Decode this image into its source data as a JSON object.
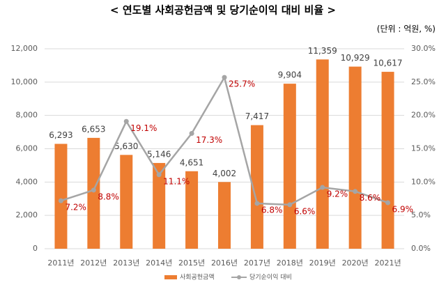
{
  "chart_data": {
    "type": "combo",
    "title": "< 연도별 사회공헌금액 및 당기순이익 대비 비율 >",
    "subtitle": "(단위 : 억원, %)",
    "categories": [
      "2011년",
      "2012년",
      "2013년",
      "2014년",
      "2015년",
      "2016년",
      "2017년",
      "2018년",
      "2019년",
      "2020년",
      "2021년"
    ],
    "series": [
      {
        "name": "사회공헌금액",
        "type": "bar",
        "color": "#ed7d31",
        "values": [
          6293,
          6653,
          5630,
          5146,
          4651,
          4002,
          7417,
          9904,
          11359,
          10929,
          10617
        ],
        "value_labels": [
          "6,293",
          "6,653",
          "5,630",
          "5,146",
          "4,651",
          "4,002",
          "7,417",
          "9,904",
          "11,359",
          "10,929",
          "10,617"
        ]
      },
      {
        "name": "당기순이익 대비",
        "type": "line",
        "color": "#a5a5a5",
        "axis": "y2",
        "label_color": "#c00000",
        "values": [
          7.2,
          8.8,
          19.1,
          11.1,
          17.3,
          25.7,
          6.8,
          6.6,
          9.2,
          8.6,
          6.9
        ],
        "value_labels": [
          "7.2%",
          "8.8%",
          "19.1%",
          "11.1%",
          "17.3%",
          "25.7%",
          "6.8%",
          "6.6%",
          "9.2%",
          "8.6%",
          "6.9%"
        ]
      }
    ],
    "ylim": [
      0,
      12000
    ],
    "yticks": [
      0,
      {
        "value": 2000,
        "label": "2,000"
      },
      {
        "value": 4000,
        "label": "4,000"
      },
      {
        "value": 6000,
        "label": "6,000"
      },
      {
        "value": 8000,
        "label": "8,000"
      },
      {
        "value": 10000,
        "label": "10,000"
      },
      {
        "value": 12000,
        "label": "12,000"
      }
    ],
    "y2lim": [
      0,
      30
    ],
    "y2ticks": [
      {
        "value": 0,
        "label": "0.0%"
      },
      {
        "value": 5,
        "label": "5.0%"
      },
      {
        "value": 10,
        "label": "10.0%"
      },
      {
        "value": 15,
        "label": "15.0%"
      },
      {
        "value": 20,
        "label": "20.0%"
      },
      {
        "value": 25,
        "label": "25.0%"
      },
      {
        "value": 30,
        "label": "30.0%"
      }
    ],
    "grid": true,
    "legend": "bottom"
  }
}
